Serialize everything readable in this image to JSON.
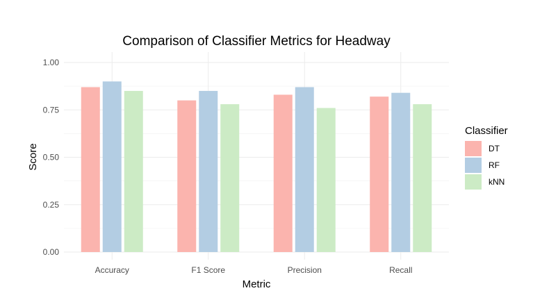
{
  "chart_data": {
    "type": "bar",
    "title": "Comparison of Classifier Metrics for Headway",
    "xlabel": "Metric",
    "ylabel": "Score",
    "categories": [
      "Accuracy",
      "F1 Score",
      "Precision",
      "Recall"
    ],
    "series": [
      {
        "name": "DT",
        "color": "#fbb4ae",
        "values": [
          0.87,
          0.8,
          0.83,
          0.82
        ]
      },
      {
        "name": "RF",
        "color": "#b3cde3",
        "values": [
          0.9,
          0.85,
          0.87,
          0.84
        ]
      },
      {
        "name": "kNN",
        "color": "#ccebc5",
        "values": [
          0.85,
          0.78,
          0.76,
          0.78
        ]
      }
    ],
    "ylim": [
      0,
      1
    ],
    "yticks": [
      "0.00",
      "0.25",
      "0.50",
      "0.75",
      "1.00"
    ],
    "legend": {
      "title": "Classifier",
      "position": "right"
    },
    "grid": true
  }
}
